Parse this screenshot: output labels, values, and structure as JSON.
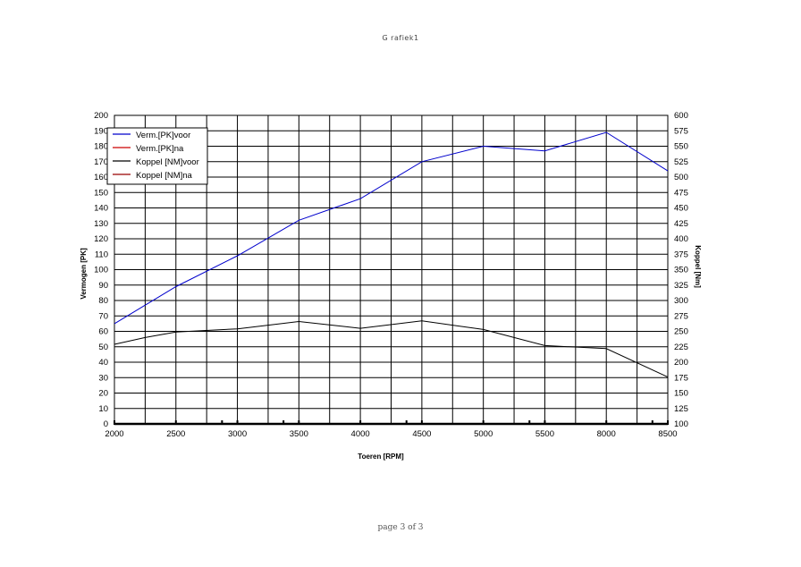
{
  "page": {
    "title": "G rafiek1",
    "footer": "page 3 of 3"
  },
  "chart_data": {
    "type": "line",
    "x_axis": {
      "label": "Toeren [RPM]",
      "ticks": [
        "2000",
        "2500",
        "3000",
        "3500",
        "4000",
        "4500",
        "5000",
        "5500",
        "8000",
        "8500"
      ],
      "categories": [
        "2000",
        "2250",
        "2500",
        "2750",
        "3000",
        "3250",
        "3500",
        "3750",
        "4000",
        "4250",
        "4500",
        "4750",
        "5000",
        "5250",
        "5500",
        "5750",
        "8000",
        "8250",
        "8500"
      ]
    },
    "y_axis_left": {
      "label": "Vermogen [PK]",
      "min": 0,
      "max": 200,
      "step": 10
    },
    "y_axis_right": {
      "label": "Koppel [Nm]",
      "min": 100,
      "max": 600,
      "step": 25
    },
    "grid": true,
    "legend_position": "top-left",
    "series": [
      {
        "name": "Verm.[PK]voor",
        "axis": "left",
        "color": "#0000cc",
        "x": [
          "2000",
          "2500",
          "3000",
          "3500",
          "4000",
          "4500",
          "5000",
          "5500",
          "8000",
          "8500"
        ],
        "values": [
          65,
          89,
          109,
          132,
          146,
          170,
          180,
          177,
          189,
          164
        ]
      },
      {
        "name": "Verm.[PK]na",
        "axis": "left",
        "color": "#cc0000",
        "x": [],
        "values": []
      },
      {
        "name": "Koppel [NM]voor",
        "axis": "right",
        "color": "#000000",
        "x": [
          "2000",
          "2250",
          "2500",
          "3000",
          "3500",
          "4000",
          "4500",
          "5000",
          "5500",
          "8000",
          "8500"
        ],
        "values": [
          229,
          240,
          249,
          254,
          266,
          255,
          267,
          253,
          227,
          222,
          176
        ]
      },
      {
        "name": "Koppel [NM]na",
        "axis": "right",
        "color": "#990000",
        "x": [],
        "values": []
      }
    ]
  }
}
